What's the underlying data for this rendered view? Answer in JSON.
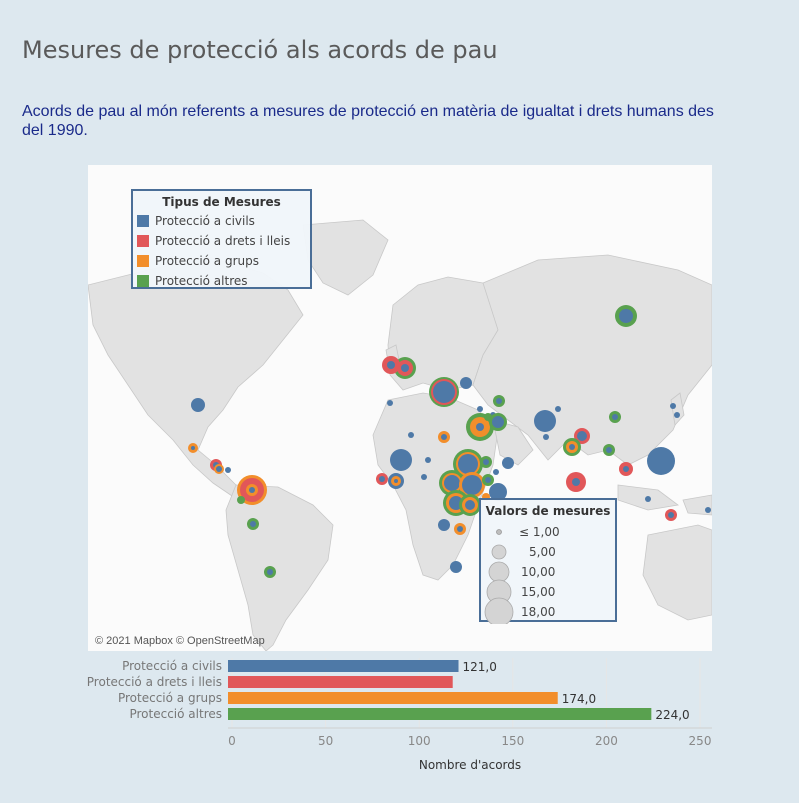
{
  "title": "Mesures de protecció als acords de pau",
  "subtitle": "Acords de pau al món referents a mesures de protecció en matèria de igualtat i drets humans des del 1990.",
  "map": {
    "attribution": "© 2021 Mapbox © OpenStreetMap"
  },
  "legend_types": {
    "title": "Tipus de Mesures",
    "items": [
      {
        "label": "Protecció a civils",
        "color": "#4e79a7"
      },
      {
        "label": "Protecció a drets i lleis",
        "color": "#e15759"
      },
      {
        "label": "Protecció a grups",
        "color": "#f28e2b"
      },
      {
        "label": "Protecció altres",
        "color": "#59a14f"
      }
    ]
  },
  "legend_size": {
    "title": "Valors de mesures",
    "items": [
      "≤ 1,00",
      "5,00",
      "10,00",
      "15,00",
      "18,00"
    ]
  },
  "chart_data": {
    "type": "bar",
    "orientation": "horizontal",
    "categories": [
      "Protecció a civils",
      "Protecció a drets i lleis",
      "Protecció a grups",
      "Protecció altres"
    ],
    "values": [
      121,
      117.9,
      174,
      224
    ],
    "value_labels": [
      "121,0",
      "",
      "174,0",
      "224,0"
    ],
    "colors": [
      "#4e79a7",
      "#e15759",
      "#f28e2b",
      "#59a14f"
    ],
    "xlabel": "Nombre d'acords",
    "xlim": [
      0,
      255
    ],
    "xticks": [
      0,
      50,
      100,
      150,
      200,
      250
    ],
    "grid": true
  }
}
